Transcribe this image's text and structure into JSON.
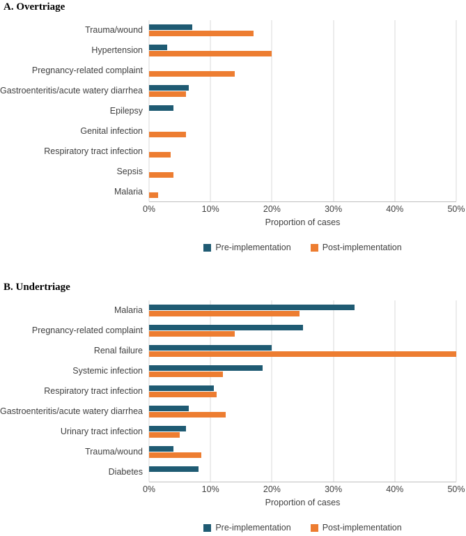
{
  "colors": {
    "pre_implementation": "#1f5b73",
    "post_implementation": "#ed7d31",
    "gridline": "#d9d9d9",
    "axis_line": "#bfbfbf",
    "text": "#3f3f3f"
  },
  "chart_data": [
    {
      "type": "bar",
      "orientation": "horizontal",
      "title": "A. Overtriage",
      "xlabel": "Proportion of cases",
      "xlim": [
        0,
        50
      ],
      "x_ticks": [
        0,
        10,
        20,
        30,
        40,
        50
      ],
      "x_tick_labels": [
        "0%",
        "10%",
        "20%",
        "30%",
        "40%",
        "50%"
      ],
      "grid": true,
      "legend_position": "bottom",
      "categories": [
        "Trauma/wound",
        "Hypertension",
        "Pregnancy-related complaint",
        "Gastroenteritis/acute watery diarrhea",
        "Epilepsy",
        "Genital infection",
        "Respiratory tract infection",
        "Sepsis",
        "Malaria"
      ],
      "series": [
        {
          "name": "Pre-implementation",
          "color": "#1f5b73",
          "values": [
            7,
            3,
            0,
            6.5,
            4,
            0,
            0,
            0,
            0
          ]
        },
        {
          "name": "Post-implementation",
          "color": "#ed7d31",
          "values": [
            17,
            20,
            14,
            6,
            0,
            6,
            3.5,
            4,
            1.5
          ]
        }
      ]
    },
    {
      "type": "bar",
      "orientation": "horizontal",
      "title": "B. Undertriage",
      "xlabel": "Proportion of cases",
      "xlim": [
        0,
        50
      ],
      "x_ticks": [
        0,
        10,
        20,
        30,
        40,
        50
      ],
      "x_tick_labels": [
        "0%",
        "10%",
        "20%",
        "30%",
        "40%",
        "50%"
      ],
      "grid": true,
      "legend_position": "bottom",
      "categories": [
        "Malaria",
        "Pregnancy-related complaint",
        "Renal failure",
        "Systemic infection",
        "Respiratory tract infection",
        "Gastroenteritis/acute watery diarrhea",
        "Urinary tract infection",
        "Trauma/wound",
        "Diabetes"
      ],
      "series": [
        {
          "name": "Pre-implementation",
          "color": "#1f5b73",
          "values": [
            33.5,
            25,
            20,
            18.5,
            10.5,
            6.5,
            6,
            4,
            8
          ]
        },
        {
          "name": "Post-implementation",
          "color": "#ed7d31",
          "values": [
            24.5,
            14,
            50,
            12,
            11,
            12.5,
            5,
            8.5,
            0
          ]
        }
      ]
    }
  ]
}
